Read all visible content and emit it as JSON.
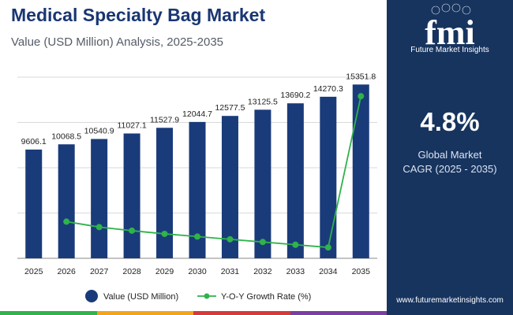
{
  "header": {
    "title": "Medical Specialty Bag Market",
    "subtitle": "Value (USD Million) Analysis, 2025-2035"
  },
  "side_panel": {
    "logo_text": "fmi",
    "logo_tagline": "Future Market Insights",
    "cagr_value": "4.8%",
    "cagr_label_line1": "Global Market",
    "cagr_label_line2": "CAGR (2025 - 2035)",
    "website": "www.futuremarketinsights.com"
  },
  "colors": {
    "bar": "#1a3b7a",
    "line": "#2fb34a",
    "panel": "#17345f",
    "title": "#1a3672",
    "bottom_bar": [
      "#2fb34a",
      "#f2a51a",
      "#d63a3a",
      "#7a3fa0"
    ]
  },
  "chart_data": {
    "type": "bar",
    "title": "Medical Specialty Bag Market",
    "categories": [
      "2025",
      "2026",
      "2027",
      "2028",
      "2029",
      "2030",
      "2031",
      "2032",
      "2033",
      "2034",
      "2035"
    ],
    "series": [
      {
        "name": "Value (USD Million)",
        "type": "bar",
        "values": [
          9606.1,
          10068.5,
          10540.9,
          11027.1,
          11527.9,
          12044.7,
          12577.5,
          13125.5,
          13690.2,
          14270.3,
          15351.8
        ],
        "labels": [
          "9606.1",
          "10068.5",
          "10540.9",
          "11027.1",
          "11527.9",
          "12044.7",
          "12577.5",
          "13125.5",
          "13690.2",
          "14270.3",
          "15351.8"
        ]
      },
      {
        "name": "Y-O-Y Growth Rate (%)",
        "type": "line",
        "values": [
          null,
          4.81,
          4.69,
          4.61,
          4.54,
          4.48,
          4.42,
          4.36,
          4.3,
          4.24,
          7.58
        ]
      }
    ],
    "ylim": [
      0,
      16000
    ],
    "y2lim": [
      4.0,
      8.0
    ],
    "xlabel": "",
    "ylabel": "",
    "grid": true,
    "legend": "bottom"
  }
}
